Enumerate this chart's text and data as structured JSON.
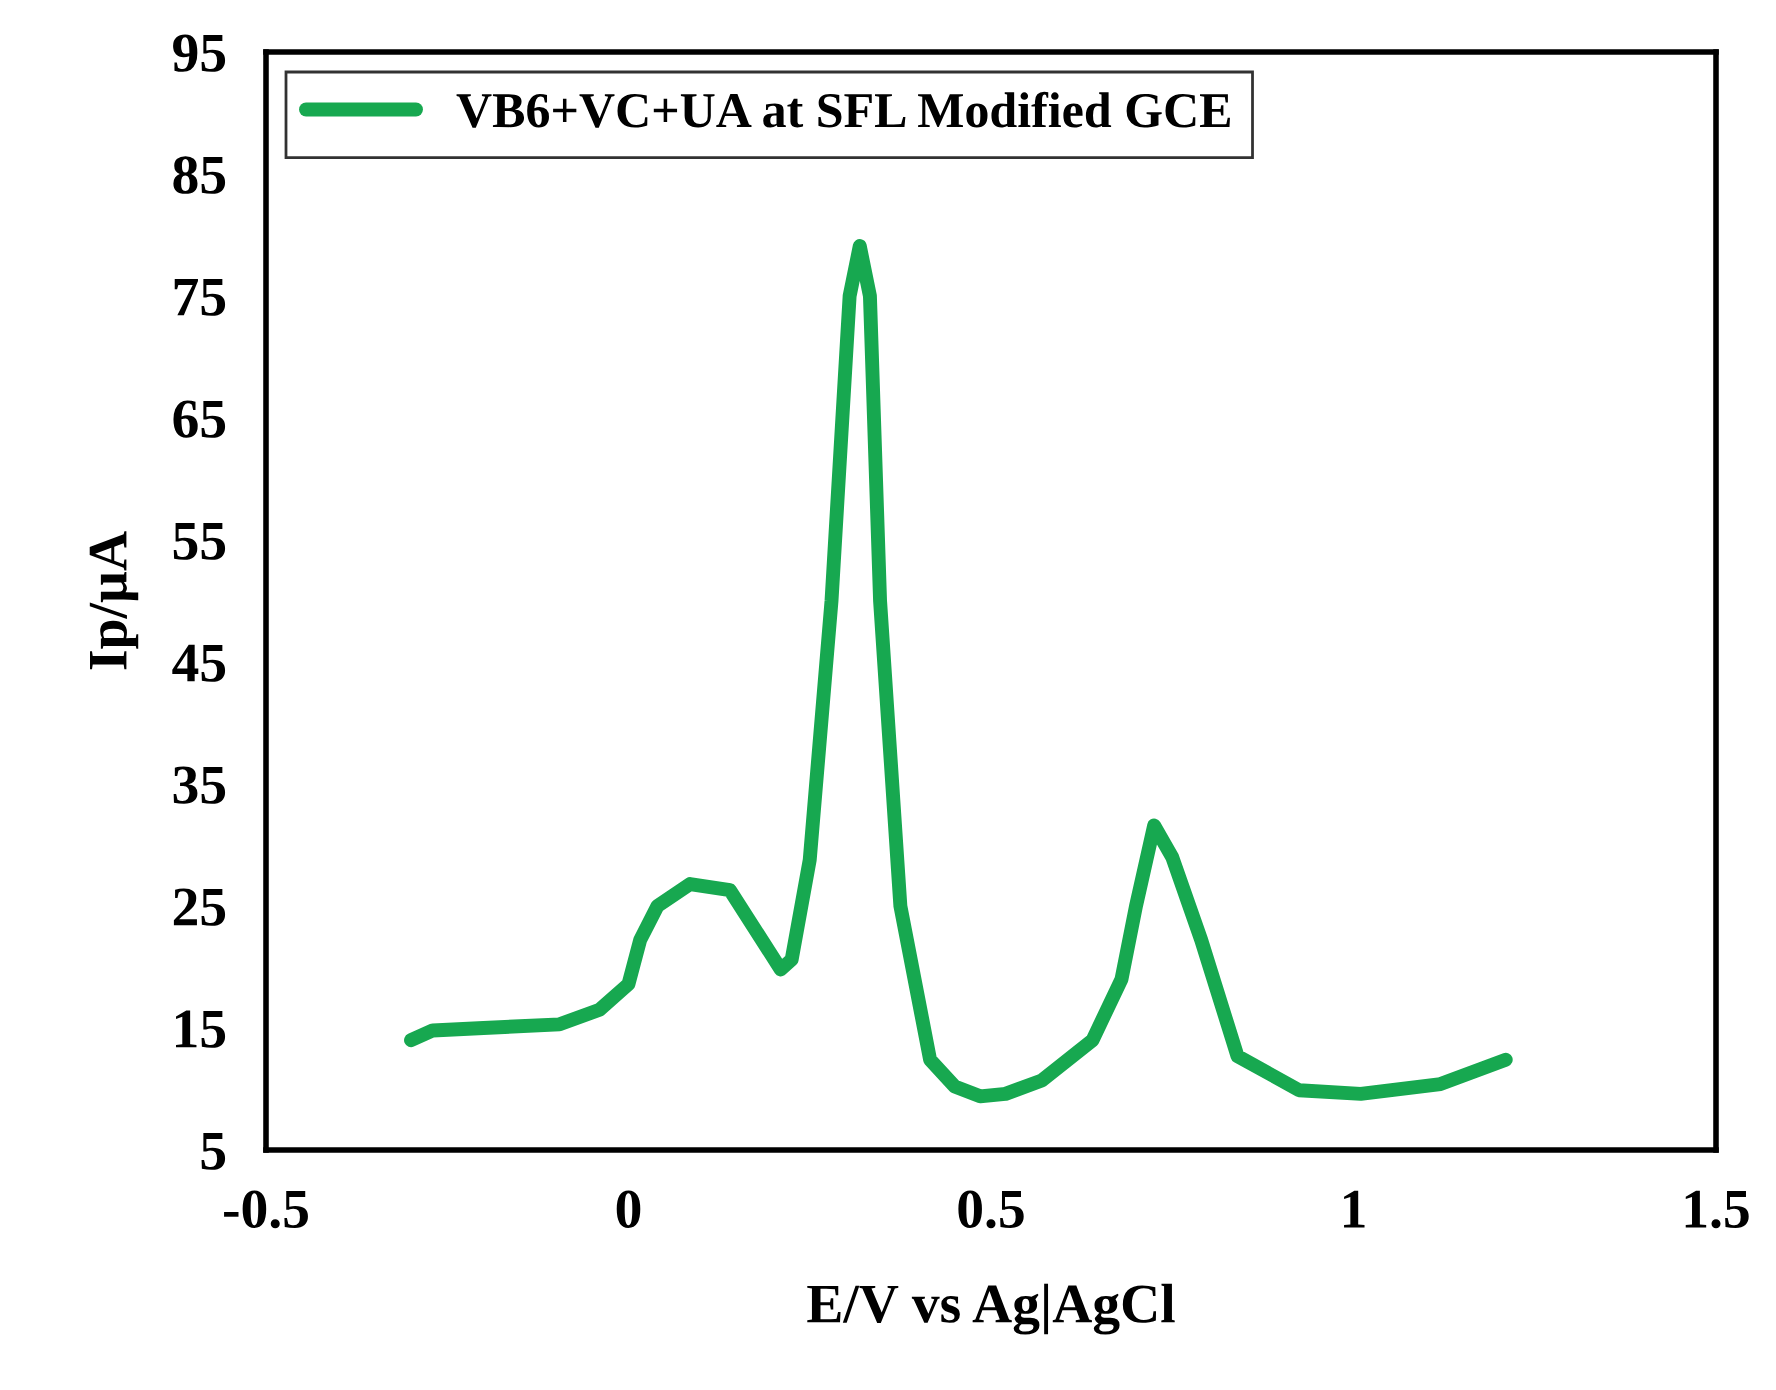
{
  "chart_data": {
    "type": "line",
    "xlabel": "E/V vs Ag|AgCl",
    "ylabel": "Ip/µA",
    "xlim": [
      -0.5,
      1.5
    ],
    "xticks": [
      -0.5,
      0,
      0.5,
      1,
      1.5
    ],
    "ylim": [
      5,
      95
    ],
    "yticks": [
      5,
      15,
      25,
      35,
      45,
      55,
      65,
      75,
      85,
      95
    ],
    "grid": false,
    "legend": "top left",
    "line_style": "solid",
    "marker": "none",
    "series": [
      {
        "name": "VB6+VC+UA at SFL Modified GCE",
        "color": "#17a850",
        "x": [
          -0.3,
          -0.27,
          -0.2,
          -0.095,
          -0.04,
          0.0,
          0.016,
          0.04,
          0.085,
          0.14,
          0.21,
          0.225,
          0.25,
          0.28,
          0.305,
          0.319,
          0.333,
          0.347,
          0.375,
          0.416,
          0.45,
          0.485,
          0.52,
          0.57,
          0.64,
          0.68,
          0.7,
          0.725,
          0.75,
          0.79,
          0.84,
          0.925,
          1.01,
          1.12,
          1.21
        ],
        "values": [
          14.0,
          14.8,
          15.0,
          15.3,
          16.5,
          18.6,
          22.2,
          25.0,
          26.8,
          26.3,
          19.8,
          20.6,
          28.8,
          50,
          75,
          79.1,
          75,
          50,
          25,
          12.4,
          10.2,
          9.4,
          9.6,
          10.7,
          14.0,
          19,
          25,
          31.6,
          29,
          22.2,
          12.7,
          9.9,
          9.6,
          10.4,
          12.4
        ]
      }
    ]
  }
}
